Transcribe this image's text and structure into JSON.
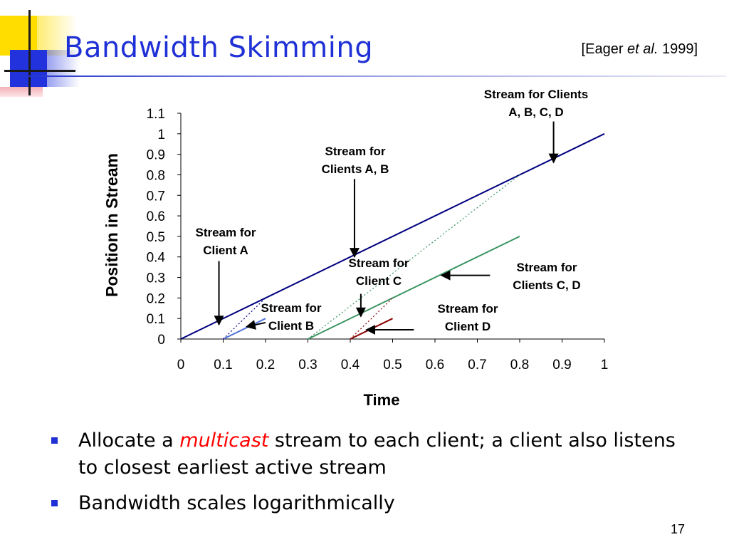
{
  "slide": {
    "title": "Bandwidth Skimming",
    "citation": {
      "open": "[Eager ",
      "italic": "et al.",
      "close": " 1999]"
    },
    "page_number": "17",
    "bullets": [
      {
        "pre": "Allocate a ",
        "highlight": "multicast",
        "post": " stream to each client; a client also listens to closest earliest active stream"
      },
      {
        "pre": "Bandwidth scales logarithmically",
        "highlight": "",
        "post": ""
      }
    ]
  },
  "colors": {
    "title": "#1f31d6",
    "highlight": "#ff0000",
    "navy": "#000080",
    "blue": "#4f73d9",
    "green": "#3a9460",
    "darkred": "#8b0000"
  },
  "chart_data": {
    "type": "line",
    "xlabel": "Time",
    "ylabel": "Position in Stream",
    "xlim": [
      0,
      1
    ],
    "ylim": [
      0,
      1.1
    ],
    "xticks": [
      "0",
      "0.1",
      "0.2",
      "0.3",
      "0.4",
      "0.5",
      "0.6",
      "0.7",
      "0.8",
      "0.9",
      "1"
    ],
    "yticks": [
      "0",
      "0.1",
      "0.2",
      "0.3",
      "0.4",
      "0.5",
      "0.6",
      "0.7",
      "0.8",
      "0.9",
      "1",
      "1.1"
    ],
    "grid": false,
    "series": [
      {
        "x": [
          0,
          1
        ],
        "y": [
          0,
          1
        ],
        "color": "#000080",
        "style": "solid"
      },
      {
        "x": [
          0.1,
          0.2
        ],
        "y": [
          0,
          0.1
        ],
        "color": "#4f73d9",
        "style": "solid"
      },
      {
        "x": [
          0.1,
          0.2
        ],
        "y": [
          0,
          0.2
        ],
        "color": "#000080",
        "style": "dotted"
      },
      {
        "x": [
          0.3,
          0.8
        ],
        "y": [
          0,
          0.5
        ],
        "color": "#3a9460",
        "style": "solid"
      },
      {
        "x": [
          0.3,
          0.8
        ],
        "y": [
          0,
          0.8
        ],
        "color": "#3a9460",
        "style": "dotted"
      },
      {
        "x": [
          0.4,
          0.5
        ],
        "y": [
          0,
          0.1
        ],
        "color": "#8b0000",
        "style": "solid"
      },
      {
        "x": [
          0.4,
          0.5
        ],
        "y": [
          0,
          0.2
        ],
        "color": "#8b0000",
        "style": "dotted"
      }
    ],
    "annotations": [
      {
        "lines": [
          "Stream for Clients",
          "A, B, C, D"
        ],
        "arrow_from": [
          0.88,
          1.06
        ],
        "arrow_to": [
          0.88,
          0.86
        ]
      },
      {
        "lines": [
          "Stream for",
          "Clients A, B"
        ],
        "arrow_from": [
          0.41,
          0.78
        ],
        "arrow_to": [
          0.41,
          0.4
        ]
      },
      {
        "lines": [
          "Stream for",
          "Client A"
        ],
        "arrow_from": [
          0.09,
          0.38
        ],
        "arrow_to": [
          0.09,
          0.07
        ]
      },
      {
        "lines": [
          "Stream for",
          "Client B"
        ],
        "arrow_from": [
          0.2,
          0.08
        ],
        "arrow_to": [
          0.155,
          0.06
        ]
      },
      {
        "lines": [
          "Stream for",
          "Client C"
        ],
        "arrow_from": [
          0.425,
          0.22
        ],
        "arrow_to": [
          0.425,
          0.11
        ]
      },
      {
        "lines": [
          "Stream for",
          "Clients C, D"
        ],
        "arrow_from": [
          0.73,
          0.31
        ],
        "arrow_to": [
          0.615,
          0.31
        ]
      },
      {
        "lines": [
          "Stream for",
          "Client D"
        ],
        "arrow_from": [
          0.55,
          0.045
        ],
        "arrow_to": [
          0.438,
          0.045
        ]
      }
    ]
  }
}
